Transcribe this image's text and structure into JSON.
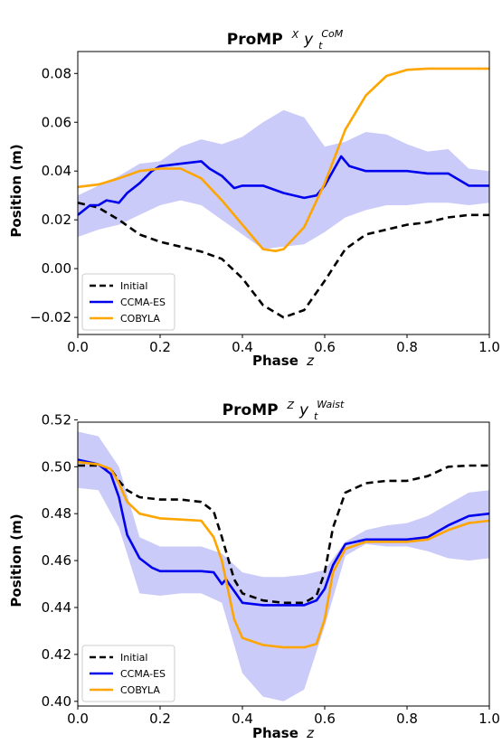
{
  "colors": {
    "initial": "#000000",
    "ccma": "#0000ee",
    "cobyla": "#ffa500",
    "band": "#b9b9f7"
  },
  "chart_data": [
    {
      "type": "line",
      "title_main": "ProMP",
      "title_sup": "X",
      "title_base": "y",
      "title_sub": "t",
      "title_sup2": "CoM",
      "xlabel_main": "Phase",
      "xlabel_var": "z",
      "ylabel": "Position (m)",
      "xlim": [
        0,
        1
      ],
      "ylim": [
        -0.027,
        0.089
      ],
      "xticks": [
        0.0,
        0.2,
        0.4,
        0.6,
        0.8,
        1.0
      ],
      "xtick_labels": [
        "0.0",
        "0.2",
        "0.4",
        "0.6",
        "0.8",
        "1.0"
      ],
      "yticks": [
        -0.02,
        0.0,
        0.02,
        0.04,
        0.06,
        0.08
      ],
      "ytick_labels": [
        "−0.02",
        "0.00",
        "0.02",
        "0.04",
        "0.06",
        "0.08"
      ],
      "legend": [
        "Initial",
        "CCMA-ES",
        "COBYLA"
      ],
      "legend_position": "lower-left",
      "series": [
        {
          "name": "Initial",
          "style": "dashed",
          "x": [
            0,
            0.05,
            0.1,
            0.15,
            0.2,
            0.25,
            0.3,
            0.35,
            0.4,
            0.45,
            0.5,
            0.55,
            0.6,
            0.65,
            0.7,
            0.75,
            0.8,
            0.85,
            0.9,
            0.95,
            1.0
          ],
          "y": [
            0.027,
            0.025,
            0.02,
            0.014,
            0.011,
            0.009,
            0.007,
            0.004,
            -0.004,
            -0.015,
            -0.02,
            -0.017,
            -0.005,
            0.008,
            0.014,
            0.016,
            0.018,
            0.019,
            0.021,
            0.022,
            0.022
          ]
        },
        {
          "name": "CCMA-ES",
          "style": "solid",
          "x": [
            0,
            0.03,
            0.05,
            0.07,
            0.1,
            0.12,
            0.15,
            0.18,
            0.2,
            0.25,
            0.3,
            0.32,
            0.35,
            0.38,
            0.4,
            0.45,
            0.5,
            0.55,
            0.58,
            0.6,
            0.62,
            0.64,
            0.66,
            0.68,
            0.7,
            0.75,
            0.8,
            0.85,
            0.9,
            0.95,
            1.0
          ],
          "y": [
            0.022,
            0.026,
            0.026,
            0.028,
            0.027,
            0.031,
            0.035,
            0.04,
            0.042,
            0.043,
            0.044,
            0.041,
            0.038,
            0.033,
            0.034,
            0.034,
            0.031,
            0.029,
            0.03,
            0.034,
            0.04,
            0.046,
            0.042,
            0.041,
            0.04,
            0.04,
            0.04,
            0.039,
            0.039,
            0.034,
            0.034
          ]
        },
        {
          "name": "COBYLA",
          "style": "solid",
          "x": [
            0,
            0.05,
            0.1,
            0.15,
            0.2,
            0.25,
            0.3,
            0.35,
            0.4,
            0.45,
            0.48,
            0.5,
            0.55,
            0.6,
            0.65,
            0.7,
            0.75,
            0.8,
            0.85,
            0.9,
            0.95,
            1.0
          ],
          "y": [
            0.0335,
            0.0345,
            0.037,
            0.04,
            0.041,
            0.041,
            0.037,
            0.028,
            0.018,
            0.008,
            0.0072,
            0.008,
            0.017,
            0.035,
            0.057,
            0.071,
            0.079,
            0.0815,
            0.082,
            0.082,
            0.082,
            0.082
          ]
        }
      ],
      "band": {
        "x": [
          0,
          0.05,
          0.1,
          0.15,
          0.2,
          0.25,
          0.3,
          0.35,
          0.4,
          0.45,
          0.5,
          0.55,
          0.6,
          0.65,
          0.7,
          0.75,
          0.8,
          0.85,
          0.9,
          0.95,
          1.0
        ],
        "upper": [
          0.03,
          0.034,
          0.038,
          0.043,
          0.044,
          0.05,
          0.053,
          0.051,
          0.054,
          0.06,
          0.065,
          0.062,
          0.05,
          0.052,
          0.056,
          0.055,
          0.051,
          0.048,
          0.049,
          0.041,
          0.04
        ],
        "lower": [
          0.013,
          0.016,
          0.018,
          0.022,
          0.026,
          0.028,
          0.026,
          0.02,
          0.014,
          0.008,
          0.009,
          0.01,
          0.015,
          0.021,
          0.024,
          0.026,
          0.026,
          0.027,
          0.027,
          0.026,
          0.027
        ]
      }
    },
    {
      "type": "line",
      "title_main": "ProMP",
      "title_sup": "Z",
      "title_base": "y",
      "title_sub": "t",
      "title_sup2": "Waist",
      "xlabel_main": "Phase",
      "xlabel_var": "z",
      "ylabel": "Position (m)",
      "xlim": [
        0,
        1
      ],
      "ylim": [
        0.398,
        0.519
      ],
      "xticks": [
        0.0,
        0.2,
        0.4,
        0.6,
        0.8,
        1.0
      ],
      "xtick_labels": [
        "0.0",
        "0.2",
        "0.4",
        "0.6",
        "0.8",
        "1.0"
      ],
      "yticks": [
        0.4,
        0.42,
        0.44,
        0.46,
        0.48,
        0.5,
        0.52
      ],
      "ytick_labels": [
        "0.40",
        "0.42",
        "0.44",
        "0.46",
        "0.48",
        "0.50",
        "0.52"
      ],
      "legend": [
        "Initial",
        "CCMA-ES",
        "COBYLA"
      ],
      "legend_position": "lower-left",
      "series": [
        {
          "name": "Initial",
          "style": "dashed",
          "x": [
            0,
            0.05,
            0.08,
            0.1,
            0.12,
            0.15,
            0.2,
            0.25,
            0.3,
            0.33,
            0.35,
            0.38,
            0.4,
            0.45,
            0.5,
            0.55,
            0.58,
            0.6,
            0.62,
            0.65,
            0.7,
            0.75,
            0.8,
            0.85,
            0.9,
            0.95,
            1.0
          ],
          "y": [
            0.5005,
            0.5005,
            0.499,
            0.494,
            0.49,
            0.487,
            0.486,
            0.486,
            0.485,
            0.481,
            0.47,
            0.452,
            0.446,
            0.443,
            0.442,
            0.442,
            0.445,
            0.455,
            0.474,
            0.489,
            0.493,
            0.494,
            0.494,
            0.496,
            0.5,
            0.5005,
            0.5005
          ]
        },
        {
          "name": "CCMA-ES",
          "style": "solid",
          "x": [
            0,
            0.05,
            0.08,
            0.1,
            0.12,
            0.15,
            0.18,
            0.2,
            0.25,
            0.3,
            0.33,
            0.35,
            0.36,
            0.38,
            0.4,
            0.45,
            0.5,
            0.55,
            0.58,
            0.6,
            0.62,
            0.65,
            0.7,
            0.75,
            0.8,
            0.85,
            0.9,
            0.95,
            1.0
          ],
          "y": [
            0.503,
            0.501,
            0.497,
            0.487,
            0.471,
            0.461,
            0.457,
            0.4555,
            0.4555,
            0.4555,
            0.455,
            0.45,
            0.452,
            0.447,
            0.442,
            0.441,
            0.441,
            0.441,
            0.443,
            0.448,
            0.458,
            0.467,
            0.469,
            0.469,
            0.469,
            0.47,
            0.475,
            0.479,
            0.48
          ]
        },
        {
          "name": "COBYLA",
          "style": "solid",
          "x": [
            0,
            0.05,
            0.08,
            0.1,
            0.12,
            0.15,
            0.2,
            0.25,
            0.3,
            0.33,
            0.35,
            0.38,
            0.4,
            0.45,
            0.5,
            0.55,
            0.58,
            0.6,
            0.62,
            0.65,
            0.7,
            0.75,
            0.8,
            0.85,
            0.9,
            0.95,
            1.0
          ],
          "y": [
            0.502,
            0.501,
            0.499,
            0.493,
            0.485,
            0.48,
            0.478,
            0.4775,
            0.477,
            0.47,
            0.46,
            0.435,
            0.427,
            0.424,
            0.423,
            0.423,
            0.4245,
            0.435,
            0.455,
            0.465,
            0.468,
            0.468,
            0.468,
            0.469,
            0.473,
            0.476,
            0.477
          ]
        }
      ],
      "band": {
        "x": [
          0,
          0.05,
          0.1,
          0.15,
          0.2,
          0.25,
          0.3,
          0.35,
          0.4,
          0.45,
          0.5,
          0.55,
          0.6,
          0.65,
          0.7,
          0.75,
          0.8,
          0.85,
          0.9,
          0.95,
          1.0
        ],
        "upper": [
          0.515,
          0.513,
          0.5,
          0.47,
          0.466,
          0.466,
          0.466,
          0.463,
          0.455,
          0.453,
          0.453,
          0.454,
          0.456,
          0.468,
          0.473,
          0.475,
          0.476,
          0.479,
          0.484,
          0.489,
          0.49
        ],
        "lower": [
          0.491,
          0.49,
          0.474,
          0.446,
          0.445,
          0.446,
          0.446,
          0.442,
          0.412,
          0.402,
          0.4,
          0.405,
          0.432,
          0.462,
          0.467,
          0.466,
          0.466,
          0.464,
          0.461,
          0.46,
          0.461
        ]
      }
    }
  ]
}
